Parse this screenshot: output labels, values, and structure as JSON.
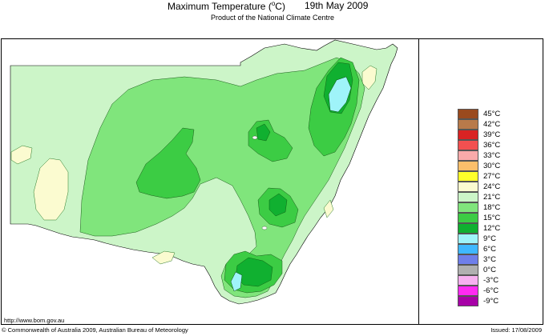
{
  "header": {
    "title": "Maximum Temperature (",
    "title_unit": "o",
    "title_end": "C)",
    "date": "19th May 2009",
    "subtitle": "Product of the National Climate Centre"
  },
  "legend": {
    "items": [
      {
        "label": "45°C",
        "color": "#9a4a1e"
      },
      {
        "label": "42°C",
        "color": "#b87a4a"
      },
      {
        "label": "39°C",
        "color": "#d92323"
      },
      {
        "label": "36°C",
        "color": "#f25050"
      },
      {
        "label": "33°C",
        "color": "#f9aaaa"
      },
      {
        "label": "30°C",
        "color": "#fbbf6b"
      },
      {
        "label": "27°C",
        "color": "#ffff2a"
      },
      {
        "label": "24°C",
        "color": "#fbfbd0"
      },
      {
        "label": "21°C",
        "color": "#ccf5c8"
      },
      {
        "label": "18°C",
        "color": "#80e57c"
      },
      {
        "label": "15°C",
        "color": "#3ccc44"
      },
      {
        "label": "12°C",
        "color": "#10b030"
      },
      {
        "label": "9°C",
        "color": "#9ff4f9"
      },
      {
        "label": "6°C",
        "color": "#3fb8ff"
      },
      {
        "label": "3°C",
        "color": "#6f7fea"
      },
      {
        "label": "0°C",
        "color": "#b0b0b0"
      },
      {
        "label": "-3°C",
        "color": "#f7b0f0"
      },
      {
        "label": "-6°C",
        "color": "#ff2af2"
      },
      {
        "label": "-9°C",
        "color": "#a700a7"
      }
    ]
  },
  "footer": {
    "url": "http://www.bom.gov.au",
    "copyright": "© Commonwealth of Australia 2009, Australian Bureau of Meteorology",
    "issued": "Issued: 17/08/2009"
  },
  "map": {
    "region": "New South Wales"
  }
}
